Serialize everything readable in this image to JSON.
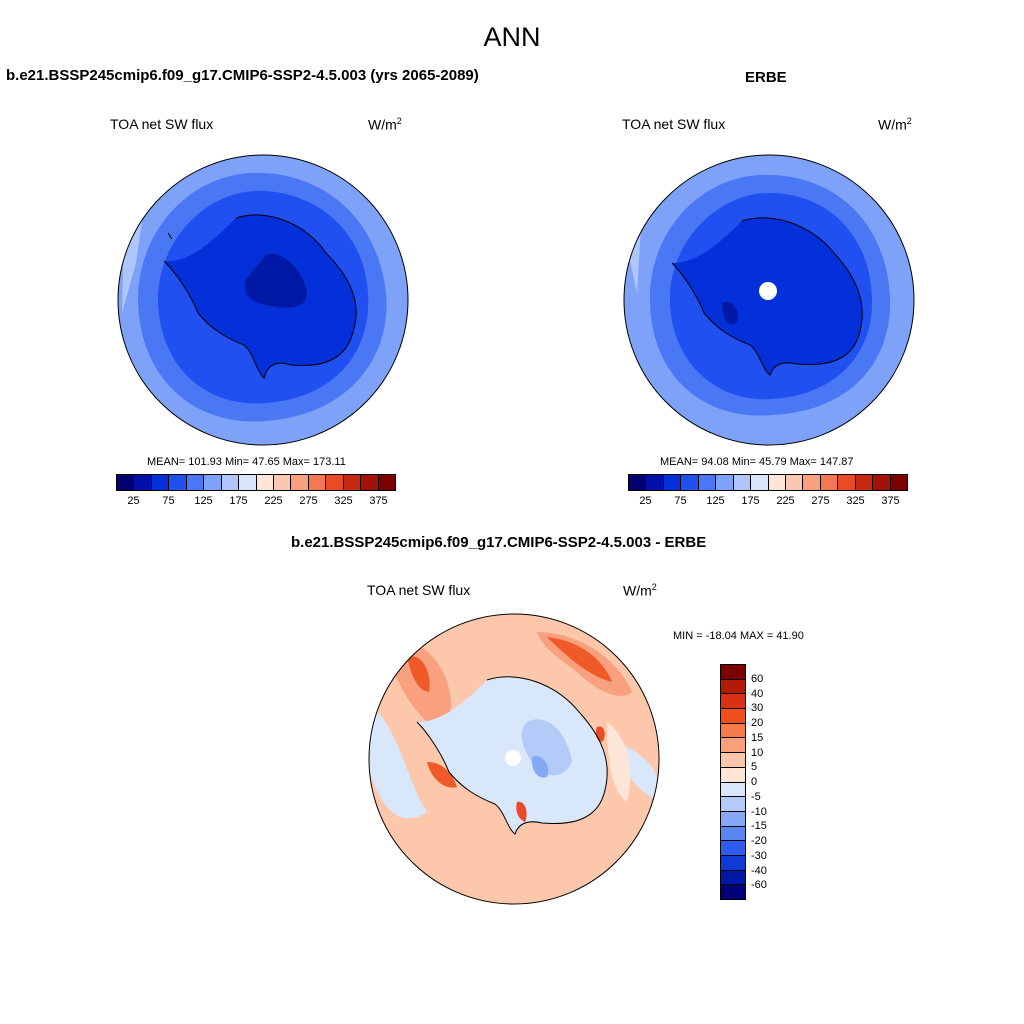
{
  "title": "ANN",
  "panels": {
    "model": {
      "title": "b.e21.BSSP245cmip6.f09_g17.CMIP6-SSP2-4.5.003 (yrs 2065-2089)",
      "variable": "TOA net SW flux",
      "units": "W/m",
      "units_sup": "2",
      "stats": "MEAN= 101.93  Min=  47.65  Max= 173.11"
    },
    "obs": {
      "title": "ERBE",
      "variable": "TOA net SW flux",
      "units": "W/m",
      "units_sup": "2",
      "stats": "MEAN=  94.08  Min=  45.79  Max= 147.87"
    },
    "diff": {
      "title": "b.e21.BSSP245cmip6.f09_g17.CMIP6-SSP2-4.5.003 - ERBE",
      "variable": "TOA net SW flux",
      "units": "W/m",
      "units_sup": "2",
      "stats": "MIN = -18.04 MAX =  41.90"
    }
  },
  "colorbar_abs": {
    "colors": [
      "#00006e",
      "#0010a8",
      "#0330d8",
      "#2050f0",
      "#4a78f5",
      "#7ea2f7",
      "#aec6fa",
      "#d6e4fc",
      "#fde5d8",
      "#fcc7b0",
      "#f9a07f",
      "#f57854",
      "#ea4b24",
      "#c62a0e",
      "#a31206",
      "#7b0000"
    ],
    "labels": [
      "25",
      "75",
      "125",
      "175",
      "225",
      "275",
      "325",
      "375"
    ]
  },
  "colorbar_diff": {
    "colors": [
      "#7b0000",
      "#b31a06",
      "#d83214",
      "#f0501c",
      "#f77c4a",
      "#fba07c",
      "#fcc7ab",
      "#fde6d8",
      "#d9e7fb",
      "#b2cbf8",
      "#86a9f5",
      "#5a86f2",
      "#2e5cf0",
      "#0f3ad4",
      "#0018a6",
      "#000078"
    ],
    "labels": [
      "60",
      "40",
      "30",
      "20",
      "15",
      "10",
      "5",
      "0",
      "-5",
      "-10",
      "-15",
      "-20",
      "-30",
      "-40",
      "-60"
    ]
  },
  "map_colors": {
    "level_75": "#0330d8",
    "level_100": "#2050f0",
    "level_125": "#4a78f5",
    "level_150": "#7ea2f7",
    "level_175": "#aec6fa",
    "level_50": "#0018a6",
    "diff_pos_light": "#fde6d8",
    "diff_pos_mid": "#fcc7ab",
    "diff_pos_high": "#f9a07f",
    "diff_pos_strong": "#f05a28",
    "diff_neg_light": "#d9e7fb",
    "diff_neg_mid": "#b2cbf8",
    "diff_neg_strong": "#5a86f2",
    "missing": "#ffffff"
  }
}
